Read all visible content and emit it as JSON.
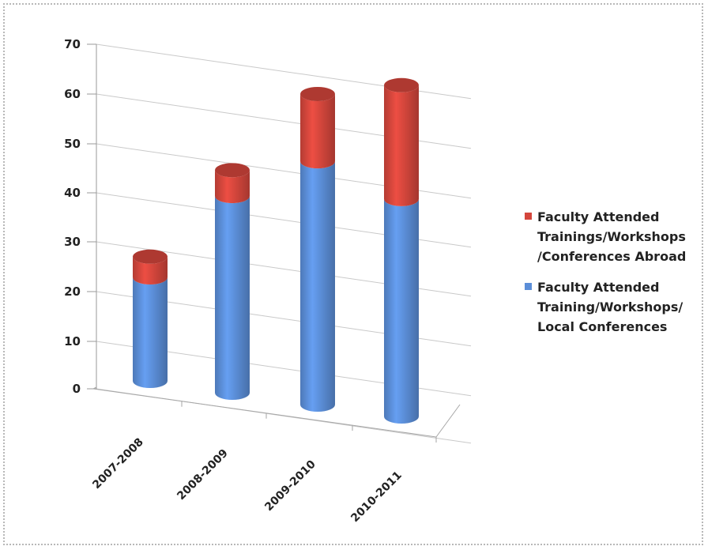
{
  "chart_data": {
    "type": "bar",
    "stacked": true,
    "style": "3d-cylinder",
    "categories": [
      "2007-2008",
      "2008-2009",
      "2009-2010",
      "2010-2011"
    ],
    "series": [
      {
        "name": "Faculty Attended\nTraining/Workshops/\nLocal Conferences",
        "color": "#5b8ed8",
        "values": [
          20,
          38,
          47,
          42
        ]
      },
      {
        "name": "Faculty Attended\nTrainings/Workshops\n/Conferences Abroad",
        "color": "#d4463c",
        "values": [
          4,
          5,
          13,
          22
        ]
      }
    ],
    "yticks": [
      0,
      10,
      20,
      30,
      40,
      50,
      60,
      70
    ],
    "ylim": [
      0,
      70
    ],
    "grid": true,
    "legend_position": "right",
    "title": "",
    "xlabel": "",
    "ylabel": ""
  }
}
